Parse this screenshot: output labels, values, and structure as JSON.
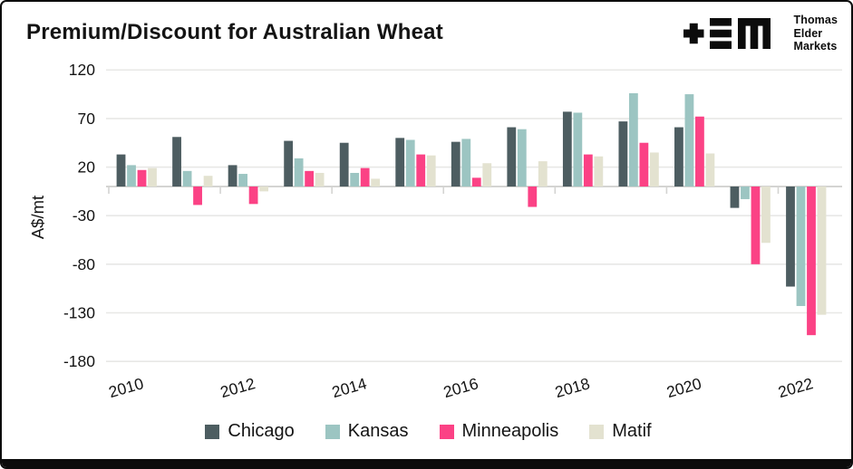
{
  "title": "Premium/Discount for Australian Wheat",
  "logo": {
    "lines": [
      "Thomas",
      "Elder",
      "Markets"
    ]
  },
  "chart_data": {
    "type": "bar",
    "title": "Premium/Discount for Australian Wheat",
    "ylabel": "A$/mt",
    "xlabel": "",
    "categories": [
      2010,
      2011,
      2012,
      2013,
      2014,
      2015,
      2016,
      2017,
      2018,
      2019,
      2020,
      2021,
      2022
    ],
    "xtick_labels_shown": [
      "2010",
      "2012",
      "2014",
      "2016",
      "2018",
      "2020",
      "2022"
    ],
    "yticks": [
      120,
      70,
      20,
      -30,
      -80,
      -130,
      -180
    ],
    "ylim": [
      -195,
      135
    ],
    "grid": true,
    "legend_position": "bottom",
    "series": [
      {
        "name": "Chicago",
        "color": "#4d5d61",
        "values": [
          33,
          51,
          22,
          47,
          45,
          50,
          46,
          61,
          77,
          67,
          61,
          -22,
          -103
        ]
      },
      {
        "name": "Kansas",
        "color": "#9cc5c2",
        "values": [
          22,
          16,
          13,
          29,
          14,
          48,
          49,
          59,
          76,
          96,
          95,
          -13,
          -123
        ]
      },
      {
        "name": "Minneapolis",
        "color": "#fb4285",
        "values": [
          17,
          -19,
          -18,
          16,
          19,
          33,
          9,
          -21,
          33,
          45,
          72,
          -80,
          -153
        ]
      },
      {
        "name": "Matif",
        "color": "#e3e2d0",
        "values": [
          19,
          11,
          -5,
          14,
          8,
          32,
          24,
          26,
          31,
          35,
          34,
          -58,
          -132
        ]
      }
    ],
    "colors": {
      "grid_line": "#e8e8e6",
      "axis_line": "#d4d4d2",
      "text": "#141414"
    }
  }
}
